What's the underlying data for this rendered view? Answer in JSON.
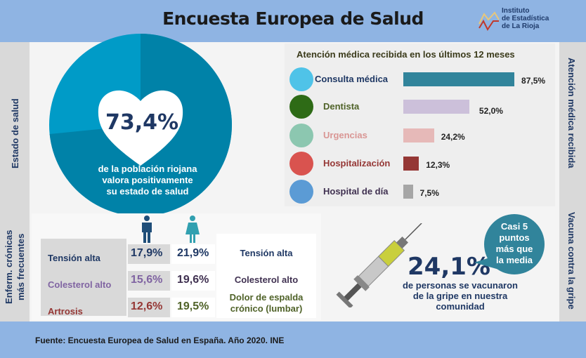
{
  "header": {
    "title": "Encuesta Europea de Salud",
    "logo_lines": [
      "Instituto",
      "de Estadística",
      "de La Rioja"
    ]
  },
  "side_labels": {
    "health": "Estado de salud",
    "attention": "Atención médica recibida",
    "chronic_1": "Enferm. crónicas",
    "chronic_2": "más frecuentes",
    "vaccine": "Vacuna contra la gripe"
  },
  "health": {
    "value": "73,4%",
    "share": 73.4,
    "text": [
      "de la población riojana",
      "valora positivamente",
      "su estado de salud"
    ]
  },
  "chart_data": {
    "type": "bar",
    "title": "Atención médica recibida en los últimos 12 meses",
    "categories": [
      "Consulta médica",
      "Dentista",
      "Urgencias",
      "Hospitalización",
      "Hospital de día"
    ],
    "values": [
      87.5,
      52.0,
      24.2,
      12.3,
      7.5
    ],
    "labels": [
      "87,5%",
      "52,0%",
      "24,2%",
      "12,3%",
      "7,5%"
    ],
    "colors": [
      "#31849b",
      "#ccc0da",
      "#e6b9b8",
      "#953735",
      "#a6a6a6"
    ],
    "label_colors": [
      "#1f3864",
      "#4f6228",
      "#d99694",
      "#953735",
      "#403151"
    ],
    "icons": [
      "doctor-icon",
      "tooth-icon",
      "first-aid-kit-icon",
      "heartbeat-icon",
      "stethoscope-icon"
    ]
  },
  "chronic": {
    "men": [
      {
        "label": "Tensión alta",
        "value": "17,9%",
        "color": "#1f3864"
      },
      {
        "label": "Colesterol alto",
        "value": "15,6%",
        "color": "#8064a2"
      },
      {
        "label": "Artrosis",
        "value": "12,6%",
        "color": "#953735"
      }
    ],
    "women": [
      {
        "label": "Tensión alta",
        "value": "21,9%",
        "color": "#1f3864"
      },
      {
        "label": "Colesterol alto",
        "value": "19,6%",
        "color": "#403151"
      },
      {
        "label": "Dolor de espalda crónico (lumbar)",
        "value": "19,5%",
        "color": "#4f6228"
      }
    ]
  },
  "vaccine": {
    "value": "24,1%",
    "text": [
      "de personas se vacunaron",
      "de la gripe en nuestra",
      "comunidad"
    ],
    "bubble": [
      "Casi 5",
      "puntos",
      "más que",
      "la media"
    ]
  },
  "footer": {
    "source": "Fuente: Encuesta  Europea de Salud en España. Año 2020. INE"
  }
}
